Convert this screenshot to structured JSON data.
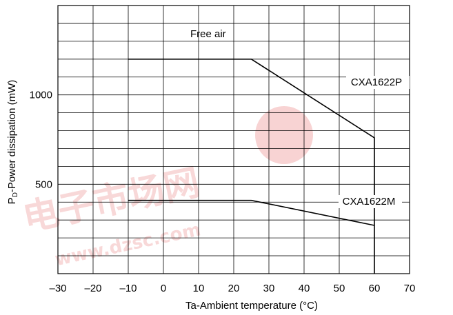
{
  "chart_data": {
    "type": "line",
    "title": "",
    "xlabel": "Ta-Ambient temperature (°C)",
    "ylabel_prefix": "P",
    "ylabel_sub": "D",
    "ylabel_rest": "-Power dissipation (mW)",
    "xlim": [
      -30,
      70
    ],
    "ylim": [
      0,
      1500
    ],
    "x_ticks": [
      -30,
      -20,
      -10,
      0,
      10,
      20,
      30,
      40,
      50,
      60,
      70
    ],
    "x_tick_labels": [
      "–30",
      "–20",
      "–10",
      "0",
      "10",
      "20",
      "30",
      "40",
      "50",
      "60",
      "70"
    ],
    "y_ticks": [
      500,
      1000
    ],
    "y_tick_labels": [
      "500",
      "1000"
    ],
    "grid": true,
    "annotations": {
      "free_air": "Free air"
    },
    "series": [
      {
        "name": "CXA1622P",
        "x": [
          -10,
          25,
          60,
          60
        ],
        "y": [
          1200,
          1200,
          760,
          0
        ]
      },
      {
        "name": "CXA1622M",
        "x": [
          -10,
          25,
          60
        ],
        "y": [
          410,
          410,
          270
        ]
      }
    ],
    "watermark": {
      "text_main": "电子市场网",
      "text_url": "www.dzsc.com",
      "color": "#f2b8b8"
    }
  }
}
